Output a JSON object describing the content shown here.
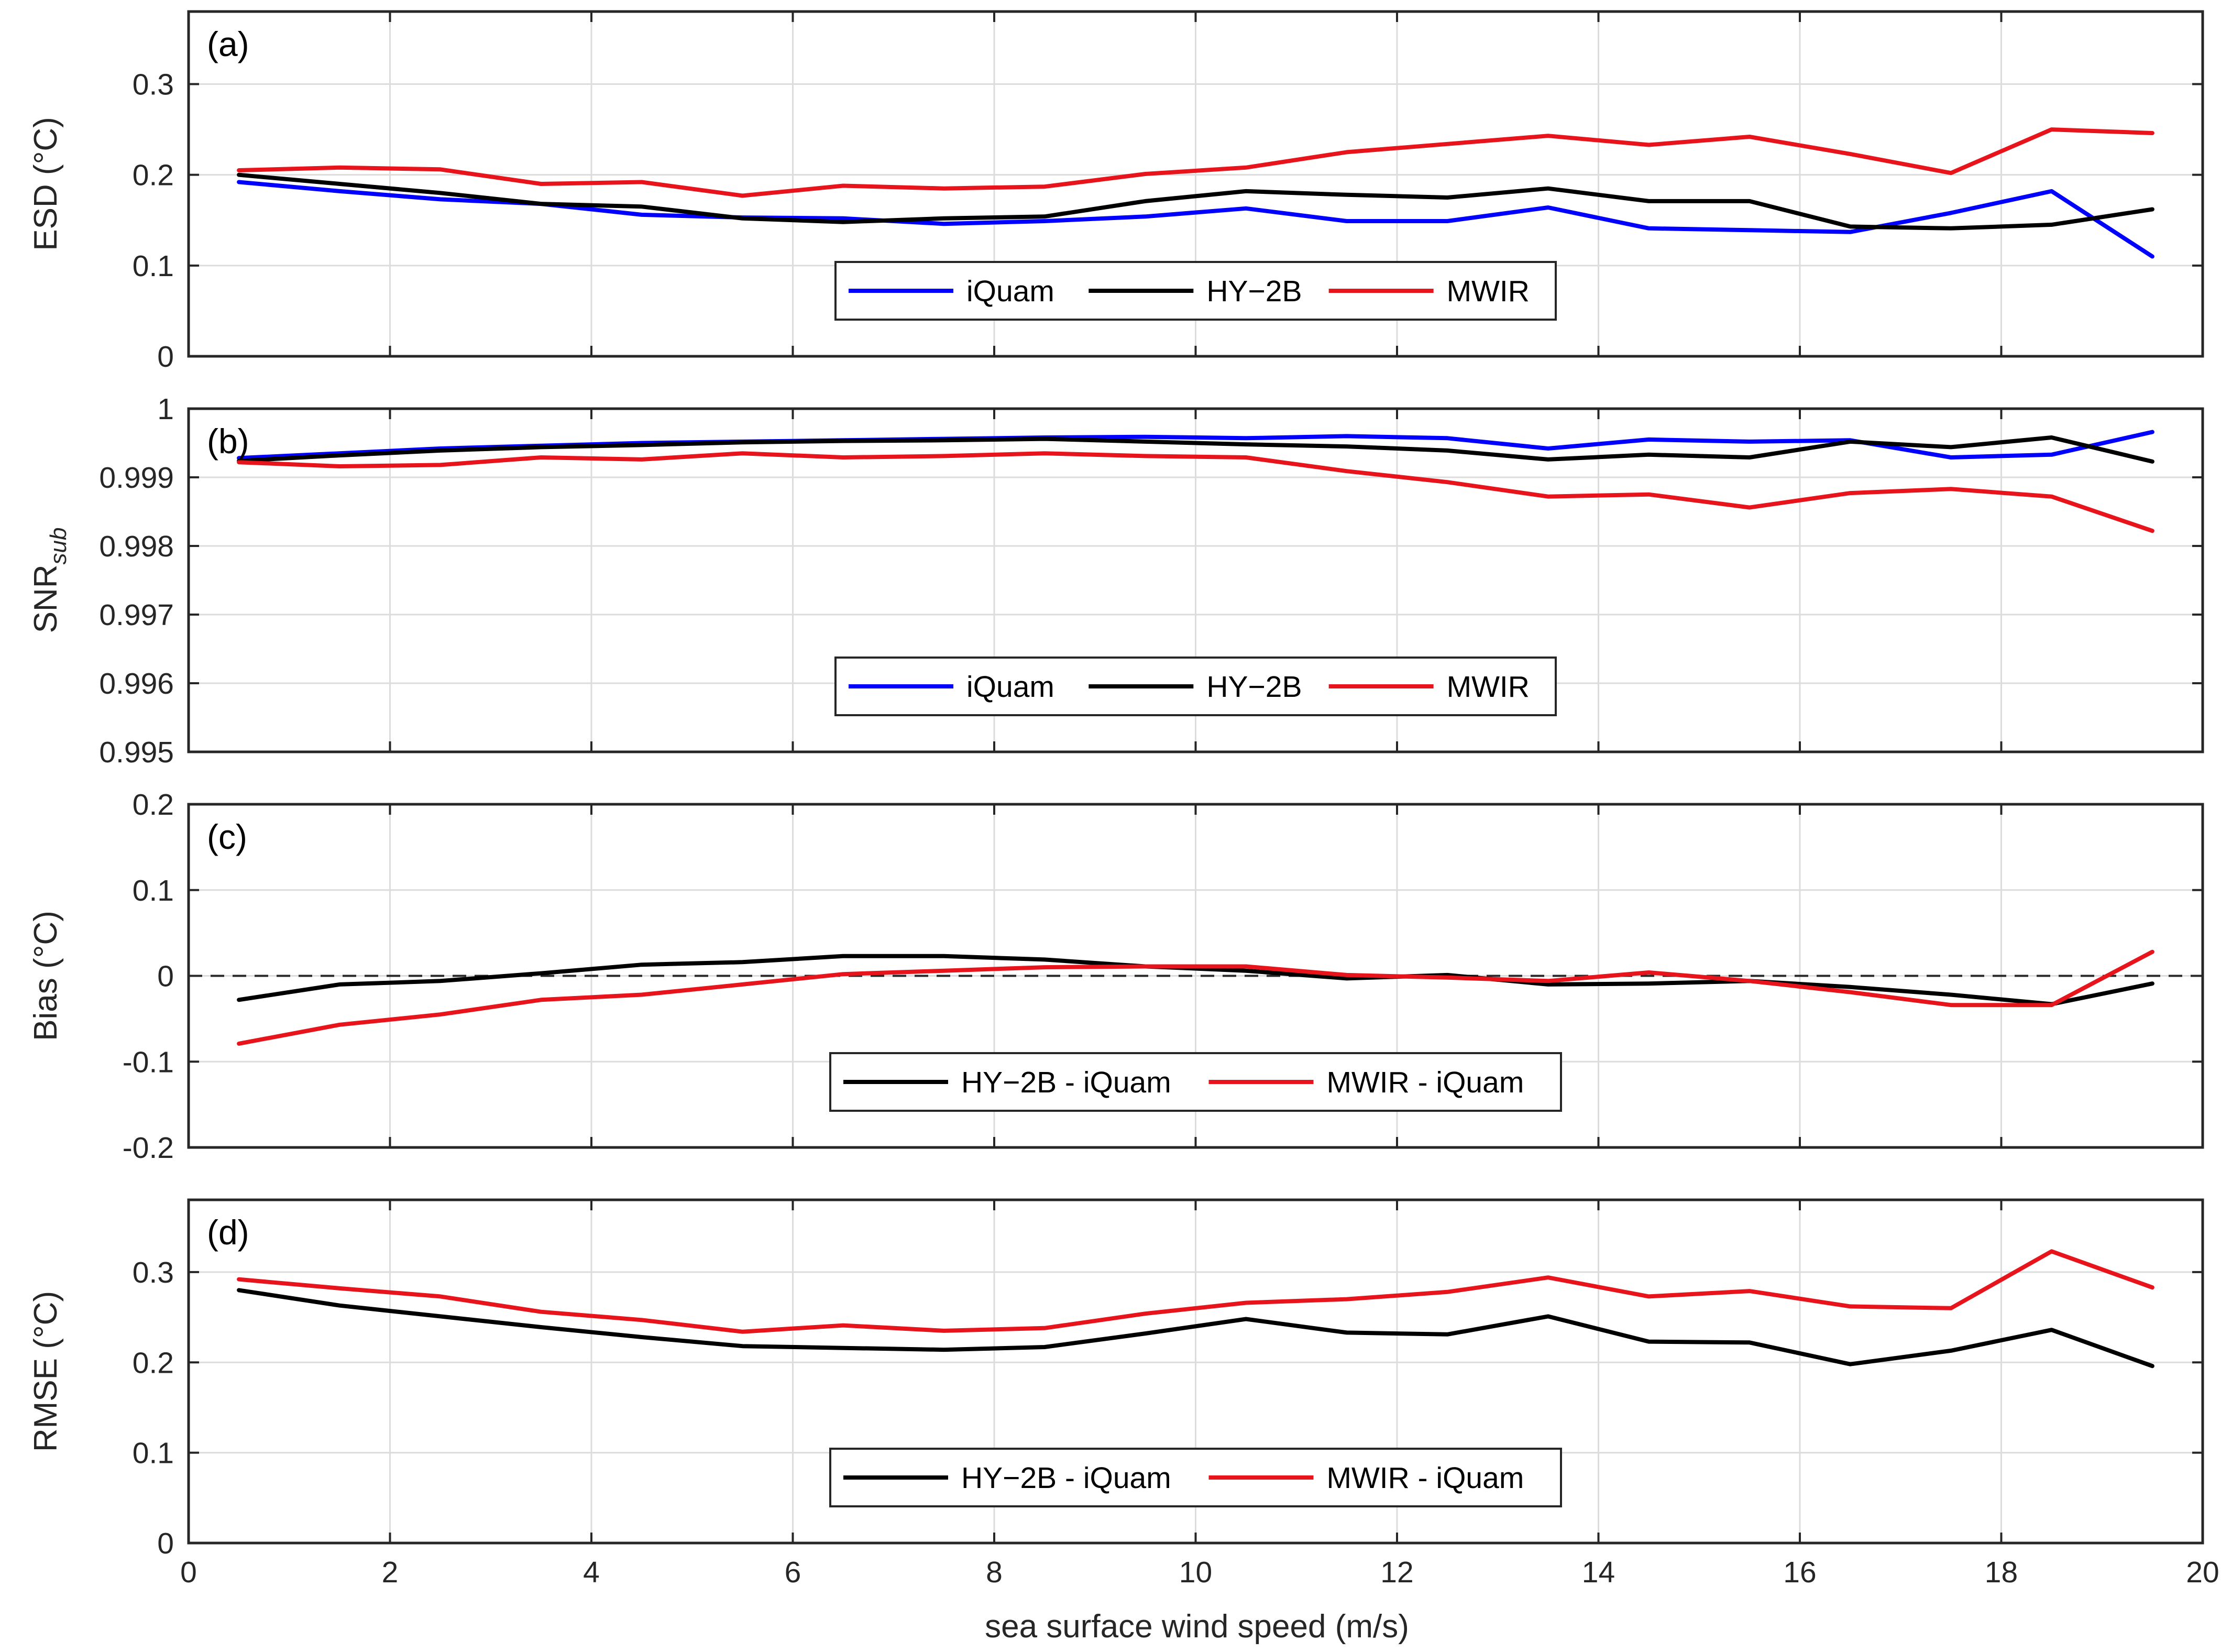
{
  "chart_data": [
    {
      "type": "line",
      "panel_label": "(a)",
      "ylabel": "ESD (°C)",
      "ylabel_sub": "",
      "xlim": [
        0,
        20
      ],
      "ylim": [
        0,
        0.38
      ],
      "yticks": [
        0,
        0.1,
        0.2,
        0.3
      ],
      "ytick_labels": [
        "0",
        "0.1",
        "0.2",
        "0.3"
      ],
      "x": [
        0.5,
        1.5,
        2.5,
        3.5,
        4.5,
        5.5,
        6.5,
        7.5,
        8.5,
        9.5,
        10.5,
        11.5,
        12.5,
        13.5,
        14.5,
        15.5,
        16.5,
        17.5,
        18.5,
        19.5
      ],
      "series": [
        {
          "name": "iQuam",
          "color": "#0000ff",
          "values": [
            0.192,
            0.182,
            0.173,
            0.168,
            0.156,
            0.153,
            0.152,
            0.146,
            0.149,
            0.154,
            0.163,
            0.149,
            0.149,
            0.164,
            0.141,
            0.139,
            0.137,
            0.158,
            0.182,
            0.11
          ]
        },
        {
          "name": "HY−2B",
          "color": "#000000",
          "values": [
            0.2,
            0.19,
            0.18,
            0.168,
            0.165,
            0.152,
            0.148,
            0.152,
            0.154,
            0.171,
            0.182,
            0.178,
            0.175,
            0.185,
            0.171,
            0.171,
            0.143,
            0.141,
            0.145,
            0.162
          ]
        },
        {
          "name": "MWIR",
          "color": "#e8141c",
          "values": [
            0.205,
            0.208,
            0.206,
            0.19,
            0.192,
            0.177,
            0.188,
            0.185,
            0.187,
            0.201,
            0.208,
            0.225,
            0.234,
            0.243,
            0.233,
            0.242,
            0.223,
            0.202,
            0.25,
            0.246
          ]
        }
      ],
      "legend": [
        "iQuam",
        "HY−2B",
        "MWIR"
      ],
      "legend_position": "bottom-center",
      "grid": true
    },
    {
      "type": "line",
      "panel_label": "(b)",
      "ylabel": "SNR",
      "ylabel_sub": "sub",
      "xlim": [
        0,
        20
      ],
      "ylim": [
        0.995,
        1.0
      ],
      "yticks": [
        0.995,
        0.996,
        0.997,
        0.998,
        0.999,
        1.0
      ],
      "ytick_labels": [
        "0.995",
        "0.996",
        "0.997",
        "0.998",
        "0.999",
        "1"
      ],
      "x": [
        0.5,
        1.5,
        2.5,
        3.5,
        4.5,
        5.5,
        6.5,
        7.5,
        8.5,
        9.5,
        10.5,
        11.5,
        12.5,
        13.5,
        14.5,
        15.5,
        16.5,
        17.5,
        18.5,
        19.5
      ],
      "series": [
        {
          "name": "iQuam",
          "color": "#0000ff",
          "values": [
            0.99928,
            0.99935,
            0.99942,
            0.99946,
            0.9995,
            0.99952,
            0.99954,
            0.99956,
            0.99958,
            0.99959,
            0.99957,
            0.9996,
            0.99957,
            0.99942,
            0.99955,
            0.99952,
            0.99954,
            0.99929,
            0.99933,
            0.99966
          ]
        },
        {
          "name": "HY−2B",
          "color": "#000000",
          "values": [
            0.99924,
            0.99932,
            0.99939,
            0.99944,
            0.99947,
            0.99951,
            0.99953,
            0.99954,
            0.99956,
            0.99952,
            0.99948,
            0.99945,
            0.99939,
            0.99926,
            0.99933,
            0.99929,
            0.99952,
            0.99944,
            0.99958,
            0.99923
          ]
        },
        {
          "name": "MWIR",
          "color": "#e8141c",
          "values": [
            0.99922,
            0.99916,
            0.99918,
            0.99929,
            0.99926,
            0.99935,
            0.99929,
            0.99931,
            0.99935,
            0.99931,
            0.99929,
            0.99909,
            0.99893,
            0.99872,
            0.99875,
            0.99856,
            0.99877,
            0.99883,
            0.99872,
            0.99822
          ]
        }
      ],
      "legend": [
        "iQuam",
        "HY−2B",
        "MWIR"
      ],
      "legend_position": "bottom-center",
      "grid": true
    },
    {
      "type": "line",
      "panel_label": "(c)",
      "ylabel": "Bias (°C)",
      "ylabel_sub": "",
      "xlim": [
        0,
        20
      ],
      "ylim": [
        -0.2,
        0.2
      ],
      "yticks": [
        -0.2,
        -0.1,
        0,
        0.1,
        0.2
      ],
      "ytick_labels": [
        "-0.2",
        "-0.1",
        "0",
        "0.1",
        "0.2"
      ],
      "reference_line": 0,
      "x": [
        0.5,
        1.5,
        2.5,
        3.5,
        4.5,
        5.5,
        6.5,
        7.5,
        8.5,
        9.5,
        10.5,
        11.5,
        12.5,
        13.5,
        14.5,
        15.5,
        16.5,
        17.5,
        18.5,
        19.5
      ],
      "series": [
        {
          "name": "HY−2B - iQuam",
          "color": "#000000",
          "values": [
            -0.028,
            -0.01,
            -0.006,
            0.003,
            0.013,
            0.016,
            0.023,
            0.023,
            0.019,
            0.011,
            0.006,
            -0.003,
            0.001,
            -0.01,
            -0.009,
            -0.006,
            -0.013,
            -0.022,
            -0.033,
            -0.009
          ]
        },
        {
          "name": "MWIR - iQuam",
          "color": "#e8141c",
          "values": [
            -0.079,
            -0.057,
            -0.045,
            -0.028,
            -0.022,
            -0.01,
            0.002,
            0.006,
            0.01,
            0.011,
            0.011,
            0.001,
            -0.002,
            -0.006,
            0.004,
            -0.006,
            -0.019,
            -0.034,
            -0.034,
            0.028
          ]
        }
      ],
      "legend": [
        "HY−2B - iQuam",
        "MWIR - iQuam"
      ],
      "legend_position": "bottom-center",
      "grid": true
    },
    {
      "type": "line",
      "panel_label": "(d)",
      "ylabel": "RMSE (°C)",
      "ylabel_sub": "",
      "xlim": [
        0,
        20
      ],
      "ylim": [
        0,
        0.38
      ],
      "yticks": [
        0,
        0.1,
        0.2,
        0.3
      ],
      "ytick_labels": [
        "0",
        "0.1",
        "0.2",
        "0.3"
      ],
      "x": [
        0.5,
        1.5,
        2.5,
        3.5,
        4.5,
        5.5,
        6.5,
        7.5,
        8.5,
        9.5,
        10.5,
        11.5,
        12.5,
        13.5,
        14.5,
        15.5,
        16.5,
        17.5,
        18.5,
        19.5
      ],
      "series": [
        {
          "name": "HY−2B - iQuam",
          "color": "#000000",
          "values": [
            0.28,
            0.263,
            0.251,
            0.239,
            0.228,
            0.218,
            0.216,
            0.214,
            0.217,
            0.232,
            0.248,
            0.233,
            0.231,
            0.251,
            0.223,
            0.222,
            0.198,
            0.213,
            0.236,
            0.196
          ]
        },
        {
          "name": "MWIR - iQuam",
          "color": "#e8141c",
          "values": [
            0.292,
            0.282,
            0.273,
            0.256,
            0.247,
            0.234,
            0.241,
            0.235,
            0.238,
            0.254,
            0.266,
            0.27,
            0.278,
            0.294,
            0.273,
            0.279,
            0.262,
            0.26,
            0.323,
            0.283
          ]
        }
      ],
      "legend": [
        "HY−2B - iQuam",
        "MWIR - iQuam"
      ],
      "legend_position": "bottom-center",
      "grid": true
    }
  ],
  "x_axis": {
    "label": "sea surface wind speed (m/s)",
    "ticks": [
      0,
      2,
      4,
      6,
      8,
      10,
      12,
      14,
      16,
      18,
      20
    ],
    "tick_labels": [
      "0",
      "2",
      "4",
      "6",
      "8",
      "10",
      "12",
      "14",
      "16",
      "18",
      "20"
    ]
  }
}
